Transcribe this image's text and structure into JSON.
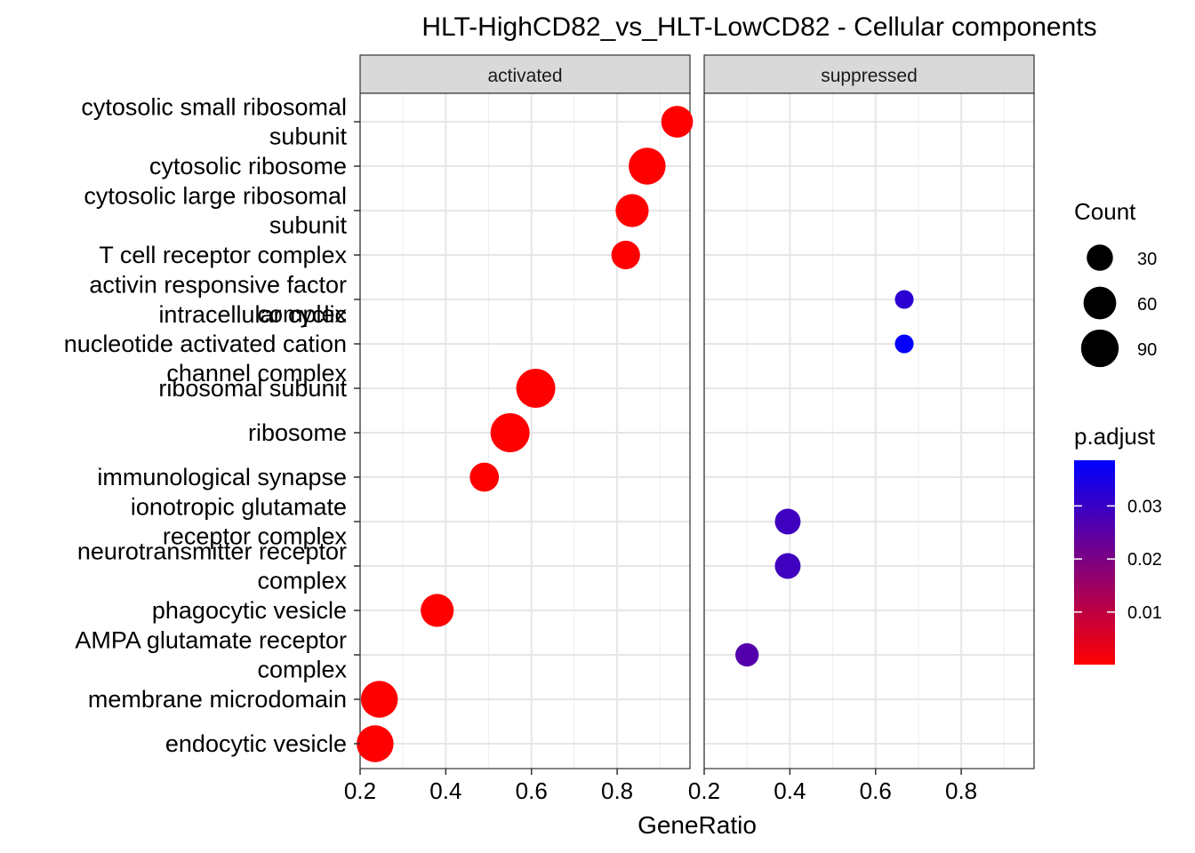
{
  "chart_data": {
    "type": "scatter",
    "title": "HLT-HighCD82_vs_HLT-LowCD82 - Cellular components",
    "xlabel": "GeneRatio",
    "ylabel": "",
    "xlim": [
      0.2,
      0.97
    ],
    "x_ticks": [
      "0.2",
      "0.4",
      "0.6",
      "0.8"
    ],
    "grid": true,
    "facets": [
      "activated",
      "suppressed"
    ],
    "categories": [
      [
        "cytosolic small ribosomal",
        "subunit"
      ],
      [
        "cytosolic ribosome"
      ],
      [
        "cytosolic large ribosomal",
        "subunit"
      ],
      [
        "T cell receptor complex"
      ],
      [
        "activin responsive factor",
        "complex"
      ],
      [
        "intracellular cyclic",
        "nucleotide activated cation",
        "channel complex"
      ],
      [
        "ribosomal subunit"
      ],
      [
        "ribosome"
      ],
      [
        "immunological synapse"
      ],
      [
        "ionotropic glutamate",
        "receptor complex"
      ],
      [
        "neurotransmitter receptor",
        "complex"
      ],
      [
        "phagocytic vesicle"
      ],
      [
        "AMPA glutamate receptor",
        "complex"
      ],
      [
        "membrane microdomain"
      ],
      [
        "endocytic vesicle"
      ]
    ],
    "points": [
      {
        "facet": 0,
        "category": 0,
        "x": 0.94,
        "count": 55,
        "p_adjust": 0.0001
      },
      {
        "facet": 0,
        "category": 1,
        "x": 0.87,
        "count": 85,
        "p_adjust": 0.0001
      },
      {
        "facet": 0,
        "category": 2,
        "x": 0.835,
        "count": 62,
        "p_adjust": 0.0001
      },
      {
        "facet": 0,
        "category": 3,
        "x": 0.82,
        "count": 40,
        "p_adjust": 0.0001
      },
      {
        "facet": 1,
        "category": 4,
        "x": 0.667,
        "count": 8,
        "p_adjust": 0.032
      },
      {
        "facet": 1,
        "category": 5,
        "x": 0.667,
        "count": 8,
        "p_adjust": 0.038
      },
      {
        "facet": 0,
        "category": 6,
        "x": 0.61,
        "count": 100,
        "p_adjust": 0.0001
      },
      {
        "facet": 0,
        "category": 7,
        "x": 0.55,
        "count": 100,
        "p_adjust": 0.0001
      },
      {
        "facet": 0,
        "category": 8,
        "x": 0.49,
        "count": 42,
        "p_adjust": 0.0001
      },
      {
        "facet": 1,
        "category": 9,
        "x": 0.395,
        "count": 28,
        "p_adjust": 0.029
      },
      {
        "facet": 1,
        "category": 10,
        "x": 0.395,
        "count": 28,
        "p_adjust": 0.029
      },
      {
        "facet": 0,
        "category": 11,
        "x": 0.38,
        "count": 62,
        "p_adjust": 0.0001
      },
      {
        "facet": 1,
        "category": 12,
        "x": 0.3,
        "count": 20,
        "p_adjust": 0.026
      },
      {
        "facet": 0,
        "category": 13,
        "x": 0.245,
        "count": 85,
        "p_adjust": 0.0001
      },
      {
        "facet": 0,
        "category": 14,
        "x": 0.235,
        "count": 85,
        "p_adjust": 0.0001
      }
    ],
    "legend_count": {
      "title": "Count",
      "values": [
        30,
        60,
        90
      ],
      "labels": [
        "30",
        "60",
        "90"
      ],
      "placement": "right"
    },
    "legend_color": {
      "title": "p.adjust",
      "labels": [
        "0.01",
        "0.02",
        "0.03"
      ],
      "values": [
        0.01,
        0.02,
        0.03
      ],
      "range": [
        0.0001,
        0.0386
      ],
      "low_color": "#ff0000",
      "high_color": "#0000ff",
      "placement": "right"
    }
  }
}
